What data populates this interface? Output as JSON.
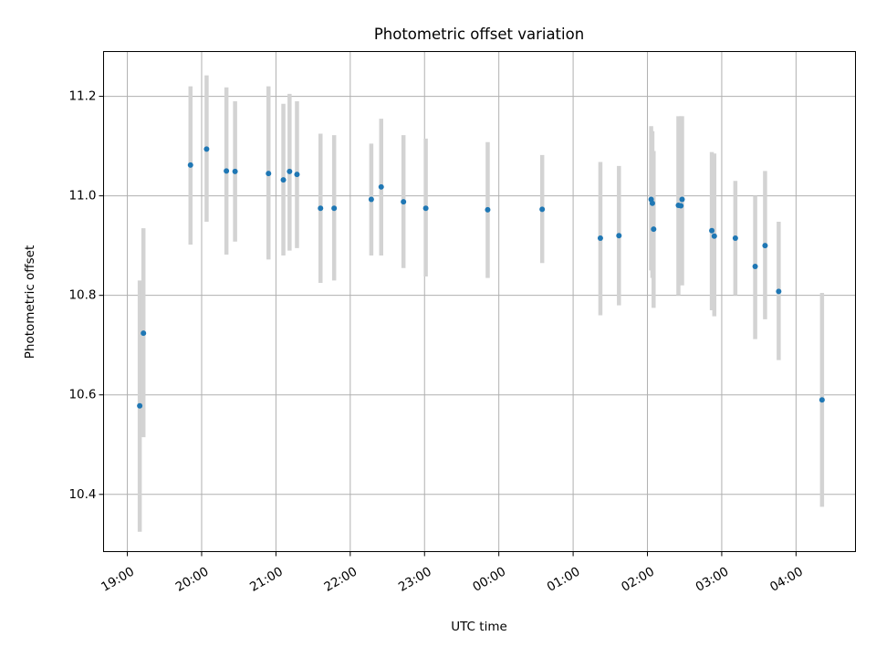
{
  "chart_data": {
    "type": "scatter",
    "title": "Photometric offset variation",
    "xlabel": "UTC time",
    "ylabel": "Photometric offset",
    "x_unit": "UTC time (hours, 19:00 on day 1 through 04:00 on day 2; values past 24 are after midnight)",
    "xlim": [
      18.68,
      28.8
    ],
    "ylim": [
      10.285,
      11.29
    ],
    "grid": true,
    "x_ticks": [
      "19:00",
      "20:00",
      "21:00",
      "22:00",
      "23:00",
      "00:00",
      "01:00",
      "02:00",
      "03:00",
      "04:00"
    ],
    "y_ticks": [
      "10.4",
      "10.6",
      "10.8",
      "11.0",
      "11.2"
    ],
    "error_bar_color": "#d3d3d3",
    "point_color": "#1f77b4",
    "points": [
      {
        "time": "19:10",
        "y": 10.578,
        "lo": 10.325,
        "hi": 10.83
      },
      {
        "time": "19:13",
        "y": 10.724,
        "lo": 10.515,
        "hi": 10.935
      },
      {
        "time": "19:51",
        "y": 11.062,
        "lo": 10.902,
        "hi": 11.22
      },
      {
        "time": "20:04",
        "y": 11.094,
        "lo": 10.948,
        "hi": 11.242
      },
      {
        "time": "20:20",
        "y": 11.05,
        "lo": 10.882,
        "hi": 11.218
      },
      {
        "time": "20:27",
        "y": 11.049,
        "lo": 10.908,
        "hi": 11.19
      },
      {
        "time": "20:54",
        "y": 11.045,
        "lo": 10.872,
        "hi": 11.22
      },
      {
        "time": "21:06",
        "y": 11.032,
        "lo": 10.88,
        "hi": 11.185
      },
      {
        "time": "21:11",
        "y": 11.049,
        "lo": 10.89,
        "hi": 11.205
      },
      {
        "time": "21:17",
        "y": 11.043,
        "lo": 10.895,
        "hi": 11.19
      },
      {
        "time": "21:36",
        "y": 10.975,
        "lo": 10.825,
        "hi": 11.125
      },
      {
        "time": "21:47",
        "y": 10.975,
        "lo": 10.83,
        "hi": 11.122
      },
      {
        "time": "22:17",
        "y": 10.993,
        "lo": 10.88,
        "hi": 11.105
      },
      {
        "time": "22:25",
        "y": 11.018,
        "lo": 10.88,
        "hi": 11.155
      },
      {
        "time": "22:43",
        "y": 10.988,
        "lo": 10.855,
        "hi": 11.122
      },
      {
        "time": "23:01",
        "y": 10.975,
        "lo": 10.838,
        "hi": 11.115
      },
      {
        "time": "23:51",
        "y": 10.972,
        "lo": 10.835,
        "hi": 11.108
      },
      {
        "time": "00:35",
        "y": 10.973,
        "lo": 10.865,
        "hi": 11.082
      },
      {
        "time": "01:22",
        "y": 10.915,
        "lo": 10.76,
        "hi": 11.068
      },
      {
        "time": "01:37",
        "y": 10.92,
        "lo": 10.78,
        "hi": 11.06
      },
      {
        "time": "02:03",
        "y": 10.993,
        "lo": 10.85,
        "hi": 11.14
      },
      {
        "time": "02:04",
        "y": 10.985,
        "lo": 10.835,
        "hi": 11.13
      },
      {
        "time": "02:05",
        "y": 10.933,
        "lo": 10.775,
        "hi": 11.09
      },
      {
        "time": "02:25",
        "y": 10.981,
        "lo": 10.8,
        "hi": 11.16
      },
      {
        "time": "02:27",
        "y": 10.98,
        "lo": 10.825,
        "hi": 11.16
      },
      {
        "time": "02:28",
        "y": 10.993,
        "lo": 10.82,
        "hi": 11.16
      },
      {
        "time": "02:52",
        "y": 10.93,
        "lo": 10.77,
        "hi": 11.088
      },
      {
        "time": "02:54",
        "y": 10.919,
        "lo": 10.758,
        "hi": 11.085
      },
      {
        "time": "03:11",
        "y": 10.915,
        "lo": 10.8,
        "hi": 11.03
      },
      {
        "time": "03:27",
        "y": 10.858,
        "lo": 10.712,
        "hi": 11.0
      },
      {
        "time": "03:35",
        "y": 10.9,
        "lo": 10.752,
        "hi": 11.05
      },
      {
        "time": "03:46",
        "y": 10.808,
        "lo": 10.67,
        "hi": 10.948
      },
      {
        "time": "04:21",
        "y": 10.59,
        "lo": 10.375,
        "hi": 10.805
      }
    ]
  }
}
